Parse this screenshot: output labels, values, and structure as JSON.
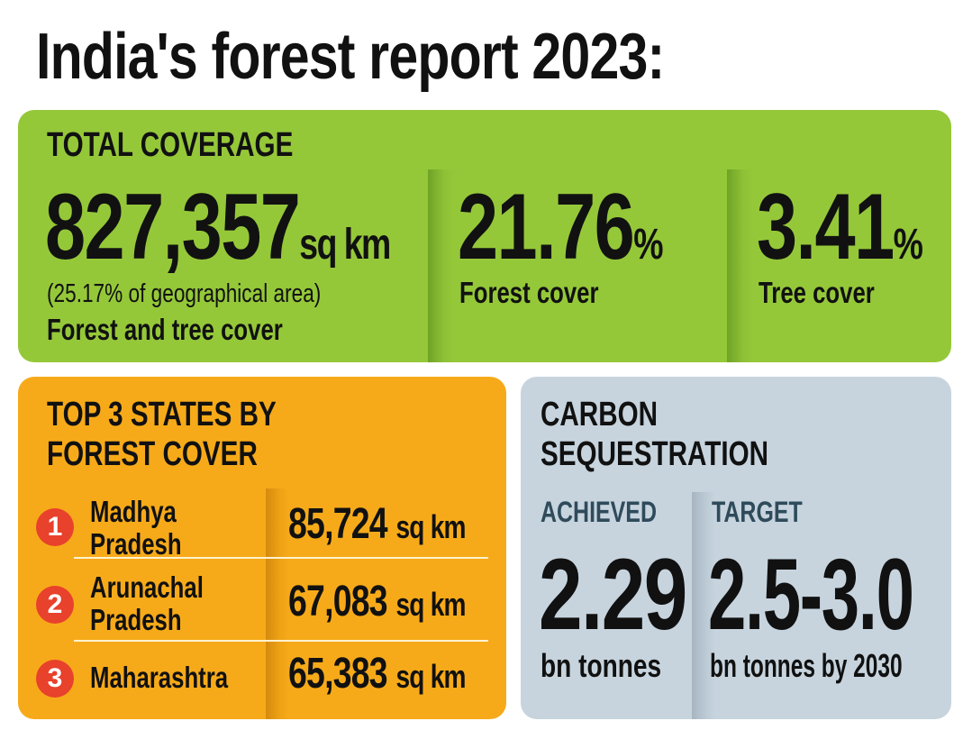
{
  "title": "India's forest report 2023:",
  "total": {
    "heading": "TOTAL COVERAGE",
    "area_value": "827,357",
    "area_unit": "sq km",
    "area_note": "(25.17% of geographical area)",
    "area_label": "Forest and tree cover",
    "forest_value": "21.76",
    "forest_unit": "%",
    "forest_label": "Forest cover",
    "tree_value": "3.41",
    "tree_unit": "%",
    "tree_label": "Tree cover"
  },
  "states": {
    "heading_line1": "TOP 3 STATES BY",
    "heading_line2": "FOREST COVER",
    "items": [
      {
        "rank": "1",
        "name_line1": "Madhya",
        "name_line2": "Pradesh",
        "value": "85,724",
        "unit": "sq km"
      },
      {
        "rank": "2",
        "name_line1": "Arunachal",
        "name_line2": "Pradesh",
        "value": "67,083",
        "unit": "sq km"
      },
      {
        "rank": "3",
        "name_line1": "Maharashtra",
        "name_line2": "",
        "value": "65,383",
        "unit": "sq km"
      }
    ]
  },
  "carbon": {
    "heading_line1": "CARBON",
    "heading_line2": "SEQUESTRATION",
    "achieved_label": "ACHIEVED",
    "achieved_value": "2.29",
    "achieved_unit": "bn tonnes",
    "target_label": "TARGET",
    "target_value": "2.5-3.0",
    "target_unit": "bn tonnes by 2030"
  },
  "colors": {
    "green": "#95c839",
    "orange": "#f7aa19",
    "blue_grey": "#c7d4de",
    "badge_red": "#e8412c"
  }
}
